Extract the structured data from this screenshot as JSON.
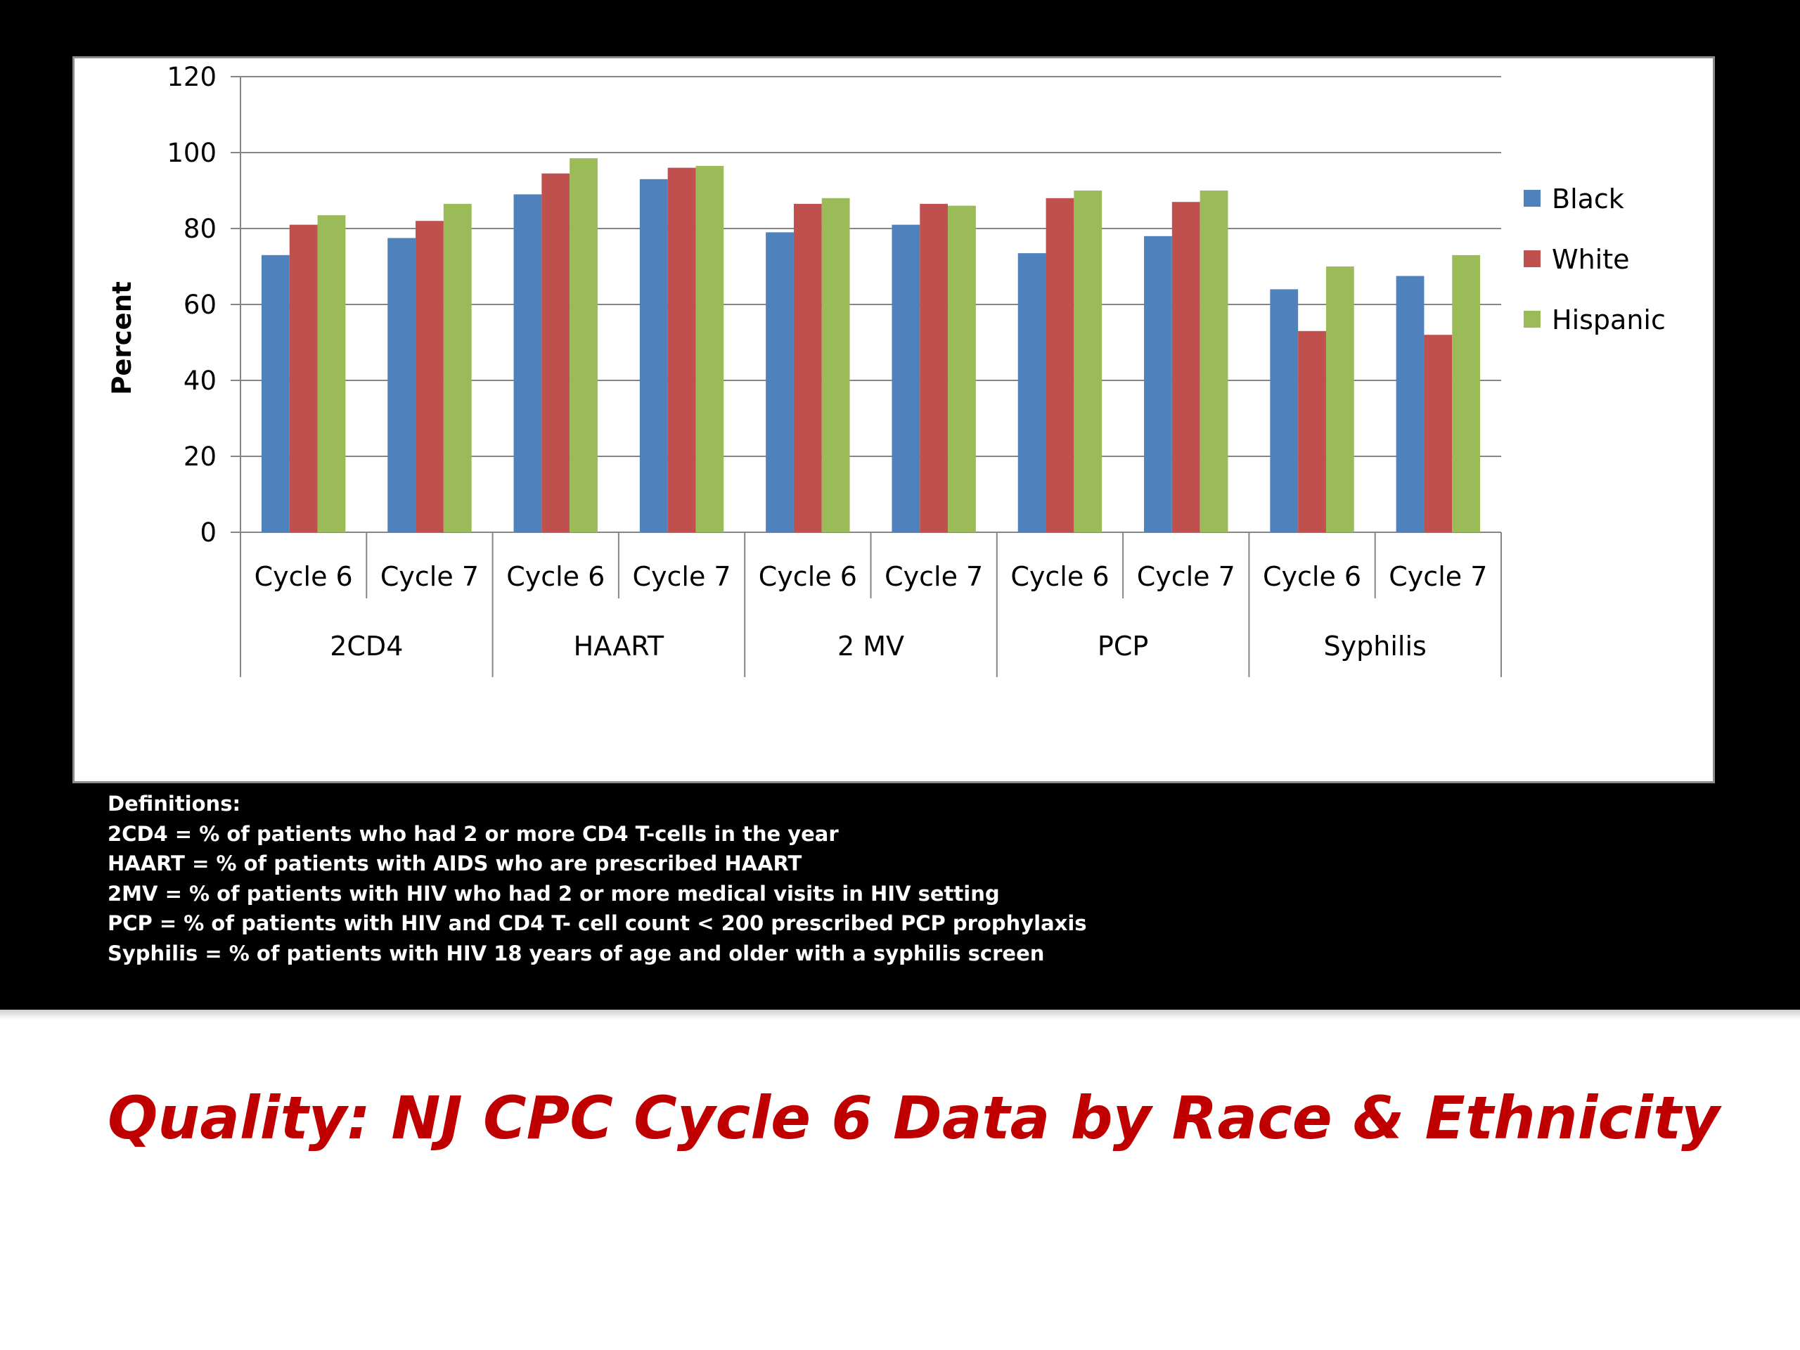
{
  "chart_data": {
    "type": "bar",
    "ylabel": "Percent",
    "xlabel": "",
    "ylim": [
      0,
      120
    ],
    "yticks": [
      0,
      20,
      40,
      60,
      80,
      100,
      120
    ],
    "grid": true,
    "legend_position": "right",
    "groups": [
      {
        "label": "2CD4",
        "categories": [
          "Cycle 6",
          "Cycle 7"
        ]
      },
      {
        "label": "HAART",
        "categories": [
          "Cycle 6",
          "Cycle 7"
        ]
      },
      {
        "label": "2 MV",
        "categories": [
          "Cycle 6",
          "Cycle 7"
        ]
      },
      {
        "label": "PCP",
        "categories": [
          "Cycle 6",
          "Cycle 7"
        ]
      },
      {
        "label": "Syphilis",
        "categories": [
          "Cycle 6",
          "Cycle 7"
        ]
      }
    ],
    "categories": [
      "Cycle 6",
      "Cycle 7",
      "Cycle 6",
      "Cycle 7",
      "Cycle 6",
      "Cycle 7",
      "Cycle 6",
      "Cycle 7",
      "Cycle 6",
      "Cycle 7"
    ],
    "series": [
      {
        "name": "Black",
        "color": "#4f81bd",
        "values": [
          73,
          77.5,
          89,
          93,
          79,
          81,
          73.5,
          78,
          64,
          67.5
        ]
      },
      {
        "name": "White",
        "color": "#c0504d",
        "values": [
          81,
          82,
          94.5,
          96,
          86.5,
          86.5,
          88,
          87,
          53,
          52
        ]
      },
      {
        "name": "Hispanic",
        "color": "#9bbb59",
        "values": [
          83.5,
          86.5,
          98.5,
          96.5,
          88,
          86,
          90,
          90,
          70,
          73
        ]
      }
    ]
  },
  "definitions": {
    "heading": "Definitions:",
    "lines": [
      "2CD4 = % of patients who had 2 or more CD4 T-cells in the year",
      "HAART = % of patients with AIDS who are prescribed HAART",
      "2MV = % of patients with HIV who had 2 or more medical visits in HIV setting",
      "PCP = % of patients with HIV and CD4 T- cell count < 200 prescribed PCP prophylaxis",
      "Syphilis = % of patients with HIV 18 years of age and older with a syphilis screen"
    ]
  },
  "slide": {
    "title": "Quality: NJ CPC Cycle 6 Data by Race & Ethnicity",
    "title_color": "#c00000"
  }
}
